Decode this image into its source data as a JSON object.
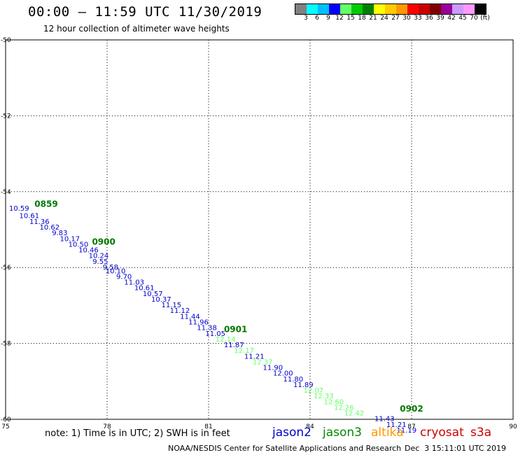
{
  "header": {
    "title": "00:00 – 11:59 UTC 11/30/2019",
    "subtitle": "12 hour collection of altimeter wave heights"
  },
  "colorbar": {
    "colors": [
      "#808080",
      "#00ffff",
      "#00bfff",
      "#0000ff",
      "#66ff66",
      "#00cc00",
      "#008000",
      "#ffff00",
      "#ffcc00",
      "#ff9900",
      "#ff0000",
      "#cc0000",
      "#800000",
      "#990099",
      "#cc99ff",
      "#ff99ff",
      "#000000"
    ],
    "labels": [
      "3",
      "6",
      "9",
      "12",
      "15",
      "18",
      "21",
      "24",
      "27",
      "30",
      "33",
      "36",
      "39",
      "42",
      "45",
      "70",
      "(ft)"
    ]
  },
  "footer": {
    "note": "note: 1) Time is in UTC; 2) SWH is in feet",
    "satellites": [
      {
        "name": "jason2",
        "color": "#0000cc"
      },
      {
        "name": "jason3",
        "color": "#008800"
      },
      {
        "name": "altika",
        "color": "#ff9900"
      },
      {
        "name": "cryosat",
        "color": "#cc0000"
      },
      {
        "name": "s3a",
        "color": "#cc0000"
      }
    ],
    "credit": "NOAA/NESDIS Center for Satellite Applications and Research",
    "timestamp": "Dec  3 15:11:01 UTC 2019"
  },
  "chart_data": {
    "type": "scatter",
    "xlim": [
      75,
      90
    ],
    "ylim": [
      -60,
      -50
    ],
    "x_ticks": [
      75,
      78,
      81,
      84,
      87,
      90
    ],
    "y_ticks": [
      -50,
      -52,
      -54,
      -56,
      -58,
      -60
    ],
    "grid": true,
    "colors": {
      "blue": "#0000cc",
      "lightgreen": "#66ff66",
      "darkgreen": "#007700"
    },
    "time_labels": [
      {
        "x": 76.2,
        "y": -54.4,
        "label": "0859"
      },
      {
        "x": 77.9,
        "y": -55.4,
        "label": "0900"
      },
      {
        "x": 81.8,
        "y": -57.7,
        "label": "0901"
      },
      {
        "x": 87.0,
        "y": -59.8,
        "label": "0902"
      }
    ],
    "points": [
      {
        "x": 75.4,
        "y": -54.5,
        "v": "10.59",
        "c": "blue"
      },
      {
        "x": 75.7,
        "y": -54.7,
        "v": "10.61",
        "c": "blue"
      },
      {
        "x": 76.0,
        "y": -54.85,
        "v": "11.36",
        "c": "blue"
      },
      {
        "x": 76.3,
        "y": -55.0,
        "v": "10.62",
        "c": "blue"
      },
      {
        "x": 76.6,
        "y": -55.15,
        "v": "9.83",
        "c": "blue"
      },
      {
        "x": 76.9,
        "y": -55.3,
        "v": "10.17",
        "c": "blue"
      },
      {
        "x": 77.15,
        "y": -55.45,
        "v": "10.50",
        "c": "blue"
      },
      {
        "x": 77.45,
        "y": -55.6,
        "v": "10.46",
        "c": "blue"
      },
      {
        "x": 77.75,
        "y": -55.75,
        "v": "10.24",
        "c": "blue"
      },
      {
        "x": 77.8,
        "y": -55.9,
        "v": "9.55",
        "c": "blue"
      },
      {
        "x": 78.1,
        "y": -56.05,
        "v": "9.58",
        "c": "blue"
      },
      {
        "x": 78.25,
        "y": -56.15,
        "v": "10.10",
        "c": "blue"
      },
      {
        "x": 78.5,
        "y": -56.3,
        "v": "9.70",
        "c": "blue"
      },
      {
        "x": 78.8,
        "y": -56.45,
        "v": "11.03",
        "c": "blue"
      },
      {
        "x": 79.1,
        "y": -56.6,
        "v": "10.61",
        "c": "blue"
      },
      {
        "x": 79.35,
        "y": -56.75,
        "v": "10.57",
        "c": "blue"
      },
      {
        "x": 79.6,
        "y": -56.9,
        "v": "10.37",
        "c": "blue"
      },
      {
        "x": 79.9,
        "y": -57.05,
        "v": "11.15",
        "c": "blue"
      },
      {
        "x": 80.15,
        "y": -57.2,
        "v": "11.12",
        "c": "blue"
      },
      {
        "x": 80.45,
        "y": -57.35,
        "v": "11.44",
        "c": "blue"
      },
      {
        "x": 80.7,
        "y": -57.5,
        "v": "11.96",
        "c": "blue"
      },
      {
        "x": 80.95,
        "y": -57.65,
        "v": "11.38",
        "c": "blue"
      },
      {
        "x": 81.2,
        "y": -57.8,
        "v": "11.05",
        "c": "blue"
      },
      {
        "x": 81.5,
        "y": -57.95,
        "v": "12.14",
        "c": "lightgreen"
      },
      {
        "x": 81.75,
        "y": -58.1,
        "v": "11.87",
        "c": "blue"
      },
      {
        "x": 82.05,
        "y": -58.25,
        "v": "12.17",
        "c": "lightgreen"
      },
      {
        "x": 82.35,
        "y": -58.4,
        "v": "11.21",
        "c": "blue"
      },
      {
        "x": 82.6,
        "y": -58.55,
        "v": "12.37",
        "c": "lightgreen"
      },
      {
        "x": 82.9,
        "y": -58.7,
        "v": "11.90",
        "c": "blue"
      },
      {
        "x": 83.2,
        "y": -58.85,
        "v": "12.00",
        "c": "blue"
      },
      {
        "x": 83.5,
        "y": -59.0,
        "v": "11.80",
        "c": "blue"
      },
      {
        "x": 83.8,
        "y": -59.15,
        "v": "11.89",
        "c": "blue"
      },
      {
        "x": 84.1,
        "y": -59.3,
        "v": "12.07",
        "c": "lightgreen"
      },
      {
        "x": 84.4,
        "y": -59.45,
        "v": "12.33",
        "c": "lightgreen"
      },
      {
        "x": 84.7,
        "y": -59.6,
        "v": "12.60",
        "c": "lightgreen"
      },
      {
        "x": 85.0,
        "y": -59.75,
        "v": "12.26",
        "c": "lightgreen"
      },
      {
        "x": 85.3,
        "y": -59.9,
        "v": "12.42",
        "c": "lightgreen"
      },
      {
        "x": 86.2,
        "y": -60.05,
        "v": "11.43",
        "c": "blue"
      },
      {
        "x": 86.55,
        "y": -60.2,
        "v": "11.21",
        "c": "blue"
      },
      {
        "x": 86.85,
        "y": -60.35,
        "v": "11.19",
        "c": "blue"
      }
    ]
  }
}
